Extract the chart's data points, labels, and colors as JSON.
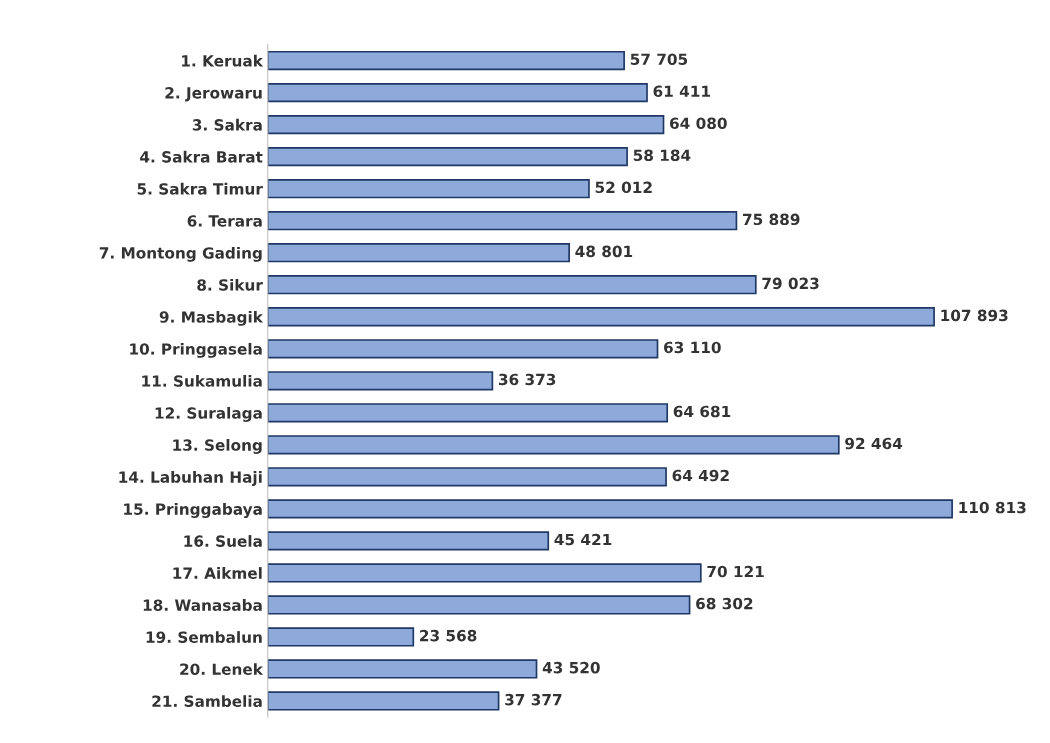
{
  "chart_data": {
    "type": "bar",
    "orientation": "horizontal",
    "categories": [
      "1. Keruak",
      "2. Jerowaru",
      "3. Sakra",
      "4. Sakra Barat",
      "5. Sakra Timur",
      "6. Terara",
      "7. Montong Gading",
      "8. Sikur",
      "9. Masbagik",
      "10. Pringgasela",
      "11. Sukamulia",
      "12. Suralaga",
      "13. Selong",
      "14. Labuhan Haji",
      "15. Pringgabaya",
      "16. Suela",
      "17. Aikmel",
      "18. Wanasaba",
      "19. Sembalun",
      "20. Lenek",
      "21. Sambelia"
    ],
    "values": [
      57705,
      61411,
      64080,
      58184,
      52012,
      75889,
      48801,
      79023,
      107893,
      63110,
      36373,
      64681,
      92464,
      64492,
      110813,
      45421,
      70121,
      68302,
      23568,
      43520,
      37377
    ],
    "value_labels": [
      "57 705",
      "61 411",
      "64 080",
      "58 184",
      "52 012",
      "75 889",
      "48 801",
      "79 023",
      "107 893",
      "63 110",
      "36 373",
      "64 681",
      "92 464",
      "64 492",
      "110 813",
      "45 421",
      "70 121",
      "68 302",
      "23 568",
      "43 520",
      "37 377"
    ],
    "color": "#8eaadb",
    "grid": false,
    "legend": false,
    "tick_labels": "y"
  }
}
